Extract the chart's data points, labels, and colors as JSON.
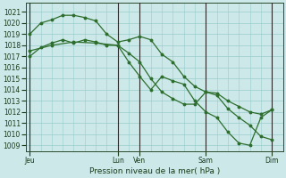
{
  "title": "Pression niveau de la mer( hPa )",
  "bg_color": "#cce8e8",
  "grid_color": "#99cccc",
  "line_color": "#2d6e2d",
  "marker_color": "#2d6e2d",
  "ylim": [
    1008.5,
    1021.8
  ],
  "yticks": [
    1009,
    1010,
    1011,
    1012,
    1013,
    1014,
    1015,
    1016,
    1017,
    1018,
    1019,
    1020,
    1021
  ],
  "xtick_labels": [
    "Jeu",
    "Lun",
    "Ven",
    "Sam",
    "Dim"
  ],
  "xtick_positions": [
    0,
    48,
    60,
    96,
    132
  ],
  "xlim": [
    -2,
    138
  ],
  "vline_positions": [
    0,
    48,
    60,
    96,
    132
  ],
  "series1_x": [
    0,
    6,
    12,
    18,
    24,
    30,
    36,
    42,
    48,
    54,
    60,
    66,
    72,
    78,
    84,
    90,
    96,
    102,
    108,
    114,
    120,
    126,
    132
  ],
  "series1_y": [
    1019.0,
    1020.0,
    1020.3,
    1020.7,
    1020.7,
    1020.5,
    1020.2,
    1019.0,
    1018.3,
    1018.5,
    1018.8,
    1018.5,
    1017.2,
    1016.5,
    1015.2,
    1014.3,
    1013.8,
    1013.7,
    1013.0,
    1012.5,
    1012.0,
    1011.8,
    1012.2
  ],
  "series2_x": [
    0,
    6,
    12,
    18,
    24,
    30,
    36,
    42,
    48,
    54,
    60,
    66,
    72,
    78,
    84,
    90,
    96,
    102,
    108,
    114,
    120,
    126,
    132
  ],
  "series2_y": [
    1017.0,
    1017.8,
    1018.2,
    1018.5,
    1018.2,
    1018.5,
    1018.3,
    1018.0,
    1018.0,
    1017.3,
    1016.5,
    1015.0,
    1013.8,
    1013.2,
    1012.7,
    1012.7,
    1013.8,
    1013.5,
    1012.3,
    1011.5,
    1010.8,
    1009.8,
    1009.5
  ],
  "series3_x": [
    0,
    12,
    24,
    36,
    48,
    54,
    60,
    66,
    72,
    78,
    84,
    90,
    96,
    102,
    108,
    114,
    120,
    126,
    132
  ],
  "series3_y": [
    1017.5,
    1018.0,
    1018.3,
    1018.2,
    1018.0,
    1016.5,
    1015.2,
    1014.0,
    1015.2,
    1014.8,
    1014.5,
    1013.0,
    1012.0,
    1011.5,
    1010.2,
    1009.2,
    1009.0,
    1011.5,
    1012.2
  ]
}
